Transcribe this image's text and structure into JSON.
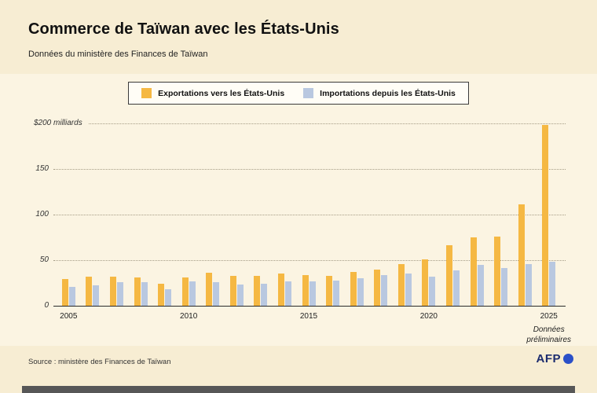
{
  "header": {
    "title": "Commerce de Taïwan avec les États-Unis",
    "subtitle": "Données du ministère des Finances de Taïwan"
  },
  "legend": {
    "exports_label": "Exportations vers les États-Unis",
    "imports_label": "Importations depuis les États-Unis"
  },
  "chart_data": {
    "type": "bar",
    "title": "Commerce de Taïwan avec les États-Unis",
    "unit": "$ milliards",
    "categories": [
      "2005",
      "2006",
      "2007",
      "2008",
      "2009",
      "2010",
      "2011",
      "2012",
      "2013",
      "2014",
      "2015",
      "2016",
      "2017",
      "2018",
      "2019",
      "2020",
      "2021",
      "2022",
      "2023",
      "2024",
      "2025"
    ],
    "series": [
      {
        "name": "Exportations vers les États-Unis",
        "key": "exports",
        "color": "#f5b843",
        "values": [
          29,
          32,
          32,
          31,
          24,
          31,
          36,
          33,
          33,
          35,
          34,
          33,
          37,
          40,
          46,
          51,
          66,
          75,
          76,
          111,
          198
        ]
      },
      {
        "name": "Importations depuis les États-Unis",
        "key": "imports",
        "color": "#b9c8e0",
        "values": [
          21,
          22,
          26,
          26,
          18,
          27,
          26,
          23,
          24,
          27,
          27,
          28,
          30,
          34,
          35,
          32,
          39,
          45,
          41,
          46,
          48
        ]
      }
    ],
    "ylim": [
      0,
      200
    ],
    "yticks": [
      0,
      50,
      100,
      150,
      200
    ],
    "ytick_labels": [
      "0",
      "50",
      "100",
      "150",
      "$200 milliards"
    ],
    "xtick_years": [
      "2005",
      "2010",
      "2015",
      "2020",
      "2025"
    ],
    "grid": "horizontal-dotted",
    "legend_position": "top-center",
    "annotation": "Données\npréliminaires"
  },
  "footer": {
    "source": "Source : ministère des Finances de Taïwan",
    "logo_text": "AFP"
  },
  "colors": {
    "background": "#f7edd3",
    "panel": "#fbf4e2",
    "exports": "#f5b843",
    "imports": "#b9c8e0",
    "gridline": "#a59c86",
    "afp_navy": "#1c2c6e",
    "afp_blue": "#2b50c8"
  }
}
